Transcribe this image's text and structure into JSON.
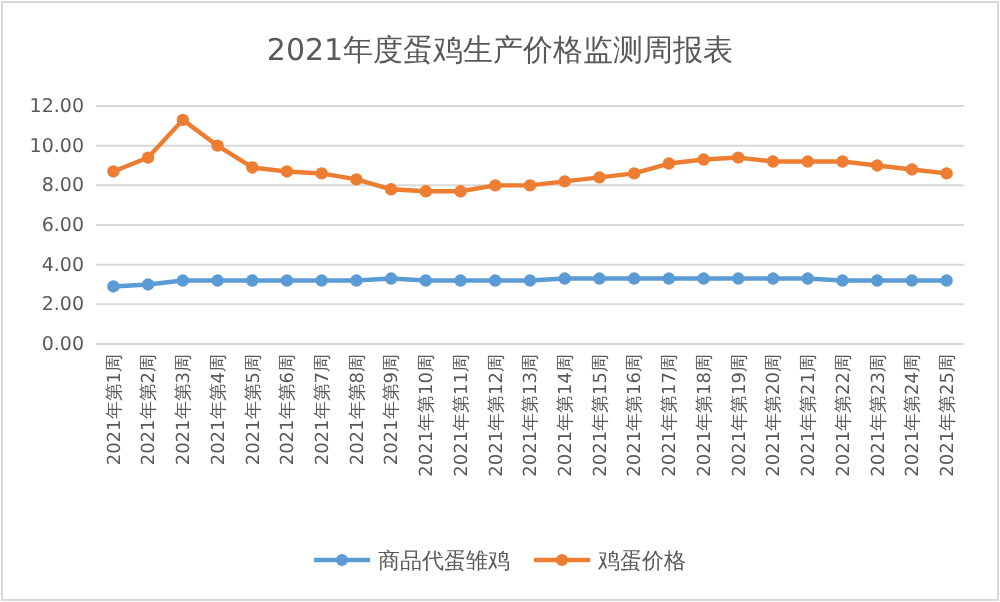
{
  "chart_data": {
    "type": "line",
    "title": "2021年度蛋鸡生产价格监测周报表",
    "categories": [
      "2021年第1周",
      "2021年第2周",
      "2021年第3周",
      "2021年第4周",
      "2021年第5周",
      "2021年第6周",
      "2021年第7周",
      "2021年第8周",
      "2021年第9周",
      "2021年第10周",
      "2021年第11周",
      "2021年第12周",
      "2021年第13周",
      "2021年第14周",
      "2021年第15周",
      "2021年第16周",
      "2021年第17周",
      "2021年第18周",
      "2021年第19周",
      "2021年第20周",
      "2021年第21周",
      "2021年第22周",
      "2021年第23周",
      "2021年第24周",
      "2021年第25周"
    ],
    "series": [
      {
        "name": "商品代蛋雏鸡",
        "color": "#5b9bd5",
        "values": [
          2.9,
          3.0,
          3.2,
          3.2,
          3.2,
          3.2,
          3.2,
          3.2,
          3.3,
          3.2,
          3.2,
          3.2,
          3.2,
          3.3,
          3.3,
          3.3,
          3.3,
          3.3,
          3.3,
          3.3,
          3.3,
          3.2,
          3.2,
          3.2,
          3.2
        ]
      },
      {
        "name": "鸡蛋价格",
        "color": "#ed7d31",
        "values": [
          8.7,
          9.4,
          11.3,
          10.0,
          8.9,
          8.7,
          8.6,
          8.3,
          7.8,
          7.7,
          7.7,
          8.0,
          8.0,
          8.2,
          8.4,
          8.6,
          9.1,
          9.3,
          9.4,
          9.2,
          9.2,
          9.2,
          9.0,
          8.8,
          8.6
        ]
      }
    ],
    "ylim": [
      0,
      12
    ],
    "yticks": [
      {
        "value": 0,
        "label": "0.00"
      },
      {
        "value": 2,
        "label": "2.00"
      },
      {
        "value": 4,
        "label": "4.00"
      },
      {
        "value": 6,
        "label": "6.00"
      },
      {
        "value": 8,
        "label": "8.00"
      },
      {
        "value": 10,
        "label": "10.00"
      },
      {
        "value": 12,
        "label": "12.00"
      }
    ],
    "grid": "y",
    "legend": "bottom",
    "marker": "circle",
    "line_style": "solid"
  }
}
